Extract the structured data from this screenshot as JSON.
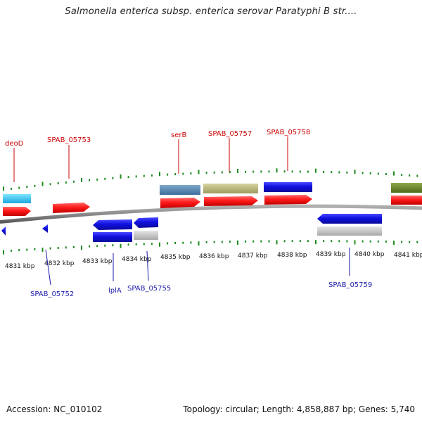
{
  "title": "Salmonella enterica subsp. enterica serovar Paratyphi B str....",
  "footer": {
    "accession": "Accession: NC_010102",
    "topology": "Topology: circular; Length: 4,858,887 bp; Genes: 5,740"
  },
  "colors": {
    "forward_gene": "#ff1a1a",
    "reverse_gene": "#1010e0",
    "label_top": "#cc0000",
    "label_bottom": "#1a1aaa",
    "ticks": "#1f8a1f",
    "backbone": "#808080"
  },
  "scale": {
    "unit": "kbp",
    "ticks": [
      "4831 kbp",
      "4832 kbp",
      "4833 kbp",
      "4834 kbp",
      "4835 kbp",
      "4836 kbp",
      "4837 kbp",
      "4838 kbp",
      "4839 kbp",
      "4840 kbp",
      "4841 kbp"
    ]
  },
  "labels_top": [
    "deoD",
    "SPAB_05753",
    "serB",
    "SPAB_05757",
    "SPAB_05758"
  ],
  "labels_bottom": [
    "SPAB_05752",
    "lplA",
    "SPAB_05755",
    "SPAB_05759"
  ]
}
